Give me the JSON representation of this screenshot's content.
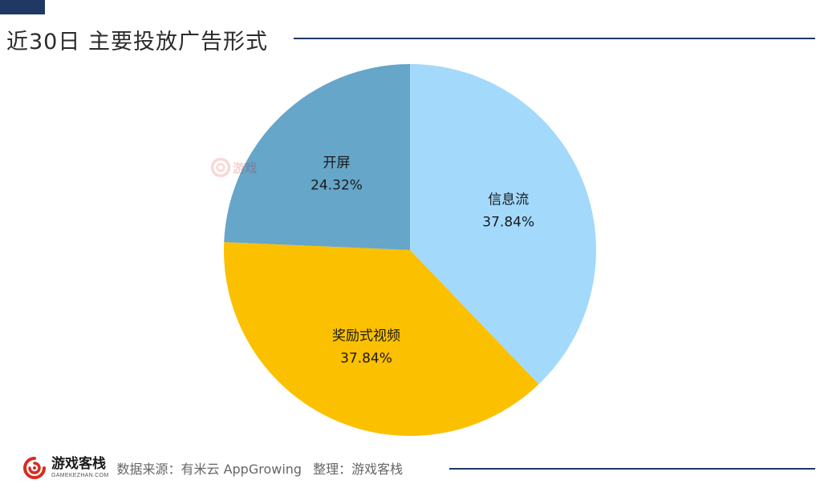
{
  "title": "近30日 主要投放广告形式",
  "footer": {
    "brand_name": "游戏客栈",
    "brand_domain": "GAMEKEZHAN.COM",
    "source": "数据来源：有米云 AppGrowing",
    "organizer": "整理：游戏客栈"
  },
  "watermark_text": "游戏",
  "colors": {
    "accent": "#1f3864",
    "logo": "#d62d20"
  },
  "chart_data": {
    "type": "pie",
    "title": "近30日 主要投放广告形式",
    "start_angle_deg": 0,
    "direction": "clockwise",
    "slices": [
      {
        "label": "信息流",
        "value": 37.84,
        "value_label": "37.84%",
        "color": "#a3d9fb"
      },
      {
        "label": "奖励式视频",
        "value": 37.84,
        "value_label": "37.84%",
        "color": "#fbc000"
      },
      {
        "label": "开屏",
        "value": 24.32,
        "value_label": "24.32%",
        "color": "#65a6c9"
      }
    ]
  }
}
